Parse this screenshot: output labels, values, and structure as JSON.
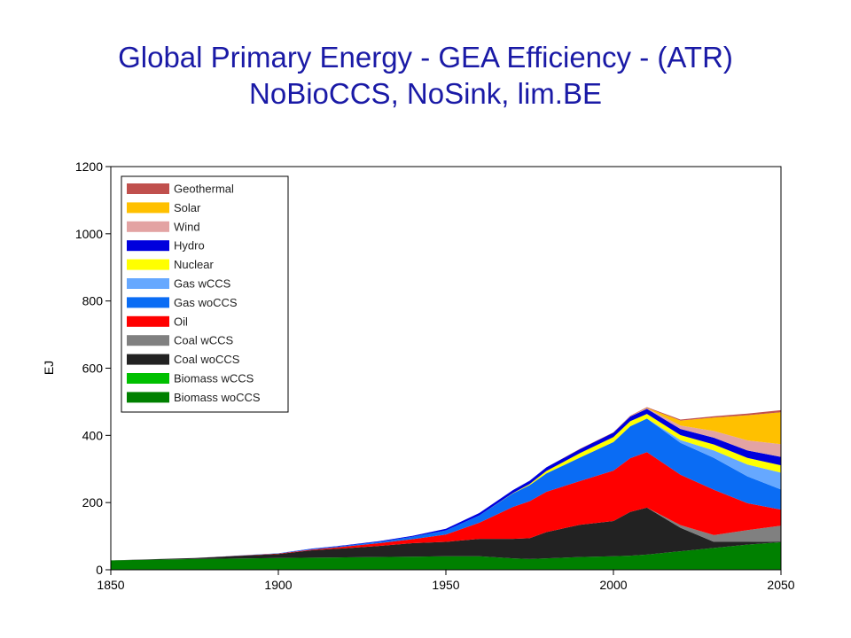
{
  "chart_data": {
    "type": "area",
    "title_line1": "Global Primary Energy - GEA Efficiency - (ATR)",
    "title_line2": "NoBioCCS, NoSink, lim.BE",
    "xlabel": "",
    "ylabel": "EJ",
    "xlim": [
      1850,
      2050
    ],
    "ylim": [
      0,
      1200
    ],
    "xticks": [
      "1850",
      "1900",
      "1950",
      "2000",
      "2050"
    ],
    "yticks": [
      "0",
      "200",
      "400",
      "600",
      "800",
      "1000",
      "1200"
    ],
    "legend_position": "top-left",
    "x": [
      1850,
      1875,
      1900,
      1910,
      1920,
      1930,
      1940,
      1950,
      1960,
      1970,
      1975,
      1980,
      1990,
      2000,
      2005,
      2010,
      2020,
      2030,
      2040,
      2050
    ],
    "series": [
      {
        "name": "Biomass woCCS",
        "color": "#008000",
        "values": [
          28,
          32,
          35,
          36,
          37,
          38,
          39,
          40,
          40,
          34,
          32,
          34,
          38,
          40,
          42,
          45,
          55,
          65,
          75,
          82
        ]
      },
      {
        "name": "Biomass wCCS",
        "color": "#00c000",
        "values": [
          0,
          0,
          0,
          0,
          0,
          0,
          0,
          0,
          0,
          0,
          0,
          0,
          0,
          0,
          0,
          0,
          0,
          0,
          0,
          0
        ]
      },
      {
        "name": "Coal woCCS",
        "color": "#222222",
        "values": [
          0,
          3,
          12,
          22,
          27,
          33,
          40,
          43,
          52,
          58,
          62,
          78,
          96,
          105,
          130,
          140,
          70,
          18,
          8,
          2
        ]
      },
      {
        "name": "Coal wCCS",
        "color": "#808080",
        "values": [
          0,
          0,
          0,
          0,
          0,
          0,
          0,
          0,
          0,
          0,
          0,
          0,
          0,
          0,
          0,
          0,
          8,
          20,
          35,
          47
        ]
      },
      {
        "name": "Oil",
        "color": "#ff0000",
        "values": [
          0,
          0,
          1,
          2,
          5,
          8,
          12,
          22,
          48,
          95,
          110,
          120,
          130,
          150,
          160,
          165,
          150,
          135,
          80,
          48
        ]
      },
      {
        "name": "Gas woCCS",
        "color": "#0a6cf4",
        "values": [
          0,
          0,
          1,
          2,
          3,
          4,
          7,
          12,
          22,
          40,
          48,
          55,
          70,
          85,
          95,
          100,
          95,
          95,
          80,
          60
        ]
      },
      {
        "name": "Gas wCCS",
        "color": "#66a8ff",
        "values": [
          0,
          0,
          0,
          0,
          0,
          0,
          0,
          0,
          0,
          0,
          0,
          0,
          0,
          0,
          0,
          0,
          8,
          22,
          35,
          50
        ]
      },
      {
        "name": "Nuclear",
        "color": "#ffff00",
        "values": [
          0,
          0,
          0,
          0,
          0,
          0,
          0,
          0,
          0,
          1,
          3,
          7,
          13,
          15,
          15,
          14,
          15,
          18,
          20,
          22
        ]
      },
      {
        "name": "Hydro",
        "color": "#0000dd",
        "values": [
          0,
          0,
          0,
          1,
          1,
          2,
          3,
          5,
          7,
          9,
          10,
          11,
          12,
          13,
          14,
          15,
          18,
          20,
          22,
          25
        ]
      },
      {
        "name": "Wind",
        "color": "#e3a3a3",
        "values": [
          0,
          0,
          0,
          0,
          0,
          0,
          0,
          0,
          0,
          0,
          0,
          0,
          0,
          0,
          1,
          2,
          10,
          20,
          30,
          38
        ]
      },
      {
        "name": "Solar",
        "color": "#ffc000",
        "values": [
          0,
          0,
          0,
          0,
          0,
          0,
          0,
          0,
          0,
          0,
          0,
          0,
          0,
          0,
          0,
          1,
          15,
          40,
          75,
          95
        ]
      },
      {
        "name": "Geothermal",
        "color": "#c0504d",
        "values": [
          0,
          0,
          0,
          0,
          0,
          0,
          0,
          0,
          0,
          0,
          0,
          0,
          1,
          1,
          1,
          2,
          3,
          4,
          5,
          6
        ]
      }
    ],
    "legend_order": [
      "Geothermal",
      "Solar",
      "Wind",
      "Hydro",
      "Nuclear",
      "Gas wCCS",
      "Gas woCCS",
      "Oil",
      "Coal wCCS",
      "Coal woCCS",
      "Biomass wCCS",
      "Biomass woCCS"
    ]
  }
}
